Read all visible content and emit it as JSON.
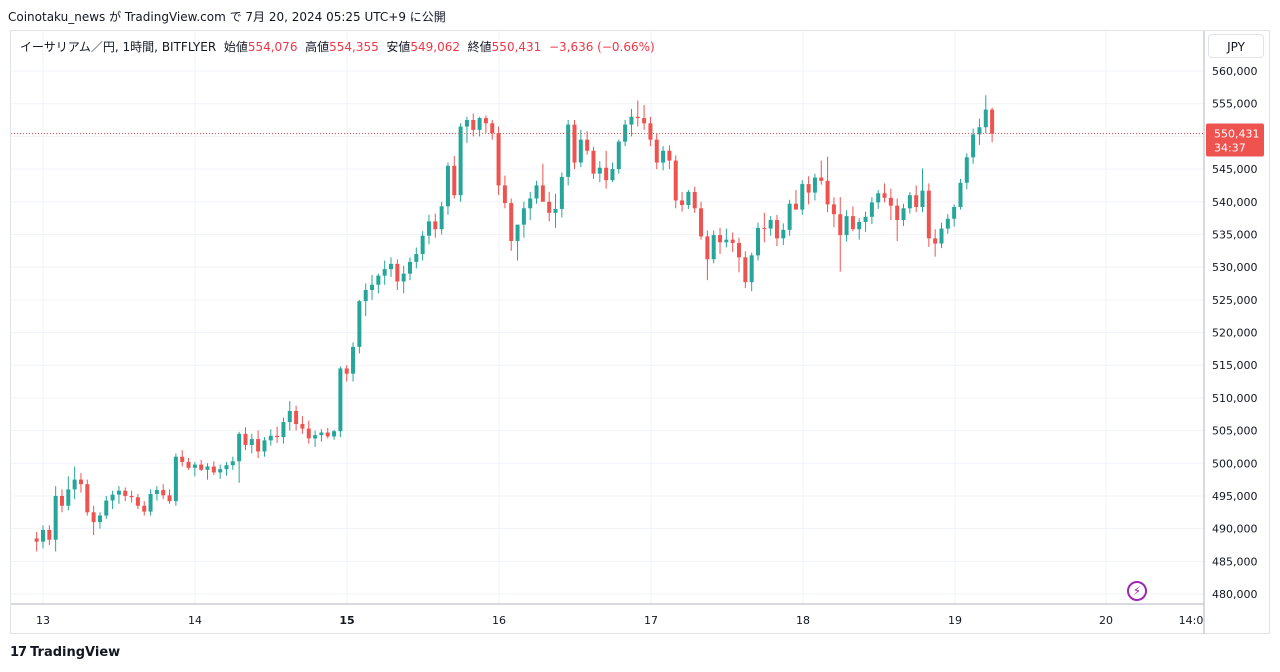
{
  "header": {
    "text": "Coinotaku_news が TradingView.com で 7月 20, 2024 05:25 UTC+9 に公開"
  },
  "legend": {
    "symbol": "イーサリアム／円, 1時間, BITFLYER",
    "open_label": "始値",
    "open_value": "554,076",
    "high_label": "高値",
    "high_value": "554,355",
    "low_label": "安値",
    "low_value": "549,062",
    "close_label": "終値",
    "close_value": "550,431",
    "change": "−3,636 (−0.66%)"
  },
  "currency_button": "JPY",
  "price_tag": {
    "price": "550,431",
    "countdown": "34:37"
  },
  "footer": {
    "brand": "TradingView",
    "logo_text": "17"
  },
  "colors": {
    "up": "#26a69a",
    "down": "#ef5350",
    "grid": "#f0f3fa",
    "axis_text": "#131722",
    "flash": "#9c27b0"
  },
  "icons": {
    "flash": "lightning-icon",
    "logo": "tradingview-logo-icon"
  },
  "chart_data": {
    "type": "candlestick",
    "y_axis": {
      "min": 480000,
      "max": 560000,
      "step": 5000,
      "tick_labels": [
        "560,000",
        "555,000",
        "550,000",
        "545,000",
        "540,000",
        "535,000",
        "530,000",
        "525,000",
        "520,000",
        "515,000",
        "510,000",
        "505,000",
        "500,000",
        "495,000",
        "490,000",
        "485,000",
        "480,000"
      ]
    },
    "x_axis": {
      "tick_labels": [
        "13",
        "14",
        "15",
        "16",
        "17",
        "18",
        "19",
        "20",
        "14:0"
      ],
      "bold": [
        "15"
      ]
    },
    "last_price": 550431,
    "candles_per_day": 24,
    "start_hour_offset": -1,
    "series": [
      [
        488500,
        489500,
        486500,
        488000
      ],
      [
        488000,
        490500,
        487000,
        489800
      ],
      [
        489800,
        490500,
        487500,
        488300
      ],
      [
        488300,
        496500,
        486500,
        495000
      ],
      [
        495000,
        496000,
        492500,
        493500
      ],
      [
        493500,
        498000,
        492800,
        496000
      ],
      [
        496000,
        499500,
        494500,
        497500
      ],
      [
        497500,
        498500,
        495500,
        496800
      ],
      [
        496800,
        497500,
        492000,
        492500
      ],
      [
        492500,
        493500,
        489000,
        491000
      ],
      [
        491000,
        492500,
        490000,
        492000
      ],
      [
        492000,
        495000,
        491500,
        494300
      ],
      [
        494300,
        495800,
        493000,
        495200
      ],
      [
        495200,
        496500,
        493800,
        495800
      ],
      [
        495800,
        496300,
        494200,
        495000
      ],
      [
        495000,
        495800,
        494000,
        494800
      ],
      [
        494800,
        495300,
        493000,
        493500
      ],
      [
        493500,
        494200,
        492000,
        492600
      ],
      [
        492600,
        496000,
        492000,
        495300
      ],
      [
        495300,
        496500,
        494300,
        495900
      ],
      [
        495900,
        496800,
        494500,
        495100
      ],
      [
        495100,
        496000,
        493800,
        494200
      ],
      [
        494200,
        501500,
        493500,
        501000
      ],
      [
        501000,
        502000,
        499500,
        500200
      ],
      [
        500200,
        500800,
        499000,
        499300
      ],
      [
        499300,
        500200,
        498000,
        499800
      ],
      [
        499800,
        500500,
        498800,
        499000
      ],
      [
        499000,
        500000,
        497500,
        499500
      ],
      [
        499500,
        500300,
        498200,
        498600
      ],
      [
        498600,
        499800,
        497600,
        499100
      ],
      [
        499100,
        500200,
        498100,
        499700
      ],
      [
        499700,
        501000,
        499000,
        500300
      ],
      [
        500300,
        504800,
        497000,
        504500
      ],
      [
        504500,
        505500,
        502000,
        502800
      ],
      [
        502800,
        504500,
        501500,
        503700
      ],
      [
        503700,
        505000,
        500800,
        501800
      ],
      [
        501800,
        504000,
        501000,
        503500
      ],
      [
        503500,
        505200,
        502700,
        504200
      ],
      [
        504200,
        505600,
        503100,
        504000
      ],
      [
        504000,
        507000,
        503000,
        506300
      ],
      [
        506300,
        509500,
        505000,
        508000
      ],
      [
        508000,
        508800,
        505000,
        506000
      ],
      [
        506000,
        507200,
        504500,
        505300
      ],
      [
        505300,
        506500,
        503000,
        503800
      ],
      [
        503800,
        505000,
        502500,
        504300
      ],
      [
        504300,
        505200,
        503300,
        504700
      ],
      [
        504700,
        505400,
        503800,
        504100
      ],
      [
        504100,
        505100,
        503600,
        504900
      ],
      [
        504900,
        514800,
        504000,
        514500
      ],
      [
        514500,
        515000,
        512500,
        513700
      ],
      [
        513700,
        518500,
        512500,
        517800
      ],
      [
        517800,
        525000,
        516800,
        524800
      ],
      [
        524800,
        527500,
        522500,
        526500
      ],
      [
        526500,
        528800,
        525000,
        527300
      ],
      [
        527300,
        529000,
        526000,
        528700
      ],
      [
        528700,
        531000,
        527300,
        529700
      ],
      [
        529700,
        531500,
        528500,
        530500
      ],
      [
        530500,
        531200,
        526500,
        527800
      ],
      [
        527800,
        530200,
        526000,
        529000
      ],
      [
        529000,
        531500,
        528000,
        530800
      ],
      [
        530800,
        533000,
        529800,
        532000
      ],
      [
        532000,
        535500,
        531000,
        534800
      ],
      [
        534800,
        538000,
        533500,
        537000
      ],
      [
        537000,
        538200,
        534500,
        535800
      ],
      [
        535800,
        540000,
        535000,
        539300
      ],
      [
        539300,
        546000,
        538000,
        545500
      ],
      [
        545500,
        547000,
        540500,
        541000
      ],
      [
        541000,
        552000,
        540000,
        551500
      ],
      [
        551500,
        553000,
        549000,
        552500
      ],
      [
        552500,
        553500,
        550000,
        551000
      ],
      [
        551000,
        553000,
        550000,
        552800
      ],
      [
        552800,
        553200,
        550500,
        552000
      ],
      [
        552000,
        552500,
        549500,
        550500
      ],
      [
        550500,
        551500,
        541000,
        542500
      ],
      [
        542500,
        544000,
        539000,
        539800
      ],
      [
        539800,
        540500,
        532500,
        534000
      ],
      [
        534000,
        535000,
        531000,
        536500
      ],
      [
        536500,
        540000,
        534500,
        539000
      ],
      [
        539000,
        541500,
        537200,
        540500
      ],
      [
        540500,
        543200,
        539700,
        542500
      ],
      [
        542500,
        545800,
        541000,
        540000
      ],
      [
        540000,
        541500,
        537000,
        538300
      ],
      [
        538300,
        541200,
        536000,
        538900
      ],
      [
        538900,
        544500,
        537600,
        543800
      ],
      [
        543800,
        552500,
        542500,
        551800
      ],
      [
        551800,
        552500,
        545000,
        546000
      ],
      [
        546000,
        551000,
        545300,
        549500
      ],
      [
        549500,
        550800,
        547200,
        547800
      ],
      [
        547800,
        548400,
        543500,
        544300
      ],
      [
        544300,
        546200,
        543000,
        545200
      ],
      [
        545200,
        547800,
        542000,
        543300
      ],
      [
        543300,
        546000,
        543000,
        545000
      ],
      [
        545000,
        549500,
        544300,
        549200
      ],
      [
        549200,
        552500,
        548500,
        551800
      ],
      [
        551800,
        554200,
        550000,
        553000
      ],
      [
        553000,
        555500,
        551500,
        552800
      ],
      [
        552800,
        554800,
        551000,
        552000
      ],
      [
        552000,
        553000,
        548500,
        549500
      ],
      [
        549500,
        550500,
        545000,
        546000
      ],
      [
        546000,
        548500,
        544800,
        547800
      ],
      [
        547800,
        548600,
        545000,
        546300
      ],
      [
        546300,
        547100,
        539000,
        540200
      ],
      [
        540200,
        541500,
        538500,
        539500
      ],
      [
        539500,
        541800,
        538900,
        541500
      ],
      [
        541500,
        542300,
        538300,
        539000
      ],
      [
        539000,
        540000,
        534200,
        534700
      ],
      [
        534700,
        535600,
        528000,
        531200
      ],
      [
        531200,
        535600,
        530600,
        534900
      ],
      [
        534900,
        536000,
        532000,
        533800
      ],
      [
        533800,
        535900,
        533000,
        534200
      ],
      [
        534200,
        535300,
        532300,
        533700
      ],
      [
        533700,
        534500,
        529200,
        531500
      ],
      [
        531500,
        532400,
        526800,
        527700
      ],
      [
        527700,
        532200,
        526300,
        531800
      ],
      [
        531800,
        536800,
        531000,
        536000
      ],
      [
        536000,
        538300,
        533800,
        535900
      ],
      [
        535900,
        537800,
        534800,
        537200
      ],
      [
        537200,
        538000,
        533200,
        534400
      ],
      [
        534400,
        536700,
        533400,
        535700
      ],
      [
        535700,
        540300,
        534800,
        539700
      ],
      [
        539700,
        541800,
        538800,
        538800
      ],
      [
        538800,
        543300,
        538000,
        542700
      ],
      [
        542700,
        543900,
        539600,
        541400
      ],
      [
        541400,
        544300,
        540200,
        543700
      ],
      [
        543700,
        546300,
        542600,
        543200
      ],
      [
        543200,
        546900,
        538400,
        539600
      ],
      [
        539600,
        540700,
        536100,
        538100
      ],
      [
        538100,
        540700,
        529300,
        534900
      ],
      [
        534900,
        538700,
        533900,
        537800
      ],
      [
        537800,
        539300,
        535500,
        535800
      ],
      [
        535800,
        537500,
        534200,
        536900
      ],
      [
        536900,
        538500,
        535400,
        537700
      ],
      [
        537700,
        540700,
        536600,
        539900
      ],
      [
        539900,
        541800,
        538900,
        541300
      ],
      [
        541300,
        542800,
        539900,
        540600
      ],
      [
        540600,
        542000,
        537200,
        539400
      ],
      [
        539400,
        540500,
        534000,
        537200
      ],
      [
        537200,
        539700,
        536300,
        539000
      ],
      [
        539000,
        541500,
        538200,
        541000
      ],
      [
        541000,
        542500,
        538400,
        539200
      ],
      [
        539200,
        545100,
        538400,
        541700
      ],
      [
        541700,
        542800,
        533100,
        534400
      ],
      [
        534400,
        535800,
        531600,
        533600
      ],
      [
        533600,
        536800,
        532900,
        535900
      ],
      [
        535900,
        538100,
        535100,
        537400
      ],
      [
        537400,
        539600,
        536200,
        539200
      ],
      [
        539200,
        543500,
        538800,
        542900
      ],
      [
        542900,
        547400,
        541900,
        546800
      ],
      [
        546800,
        551200,
        545800,
        550300
      ],
      [
        550300,
        552700,
        548700,
        551400
      ],
      [
        551400,
        556300,
        550500,
        554100
      ],
      [
        554100,
        554400,
        549100,
        550400
      ]
    ]
  }
}
